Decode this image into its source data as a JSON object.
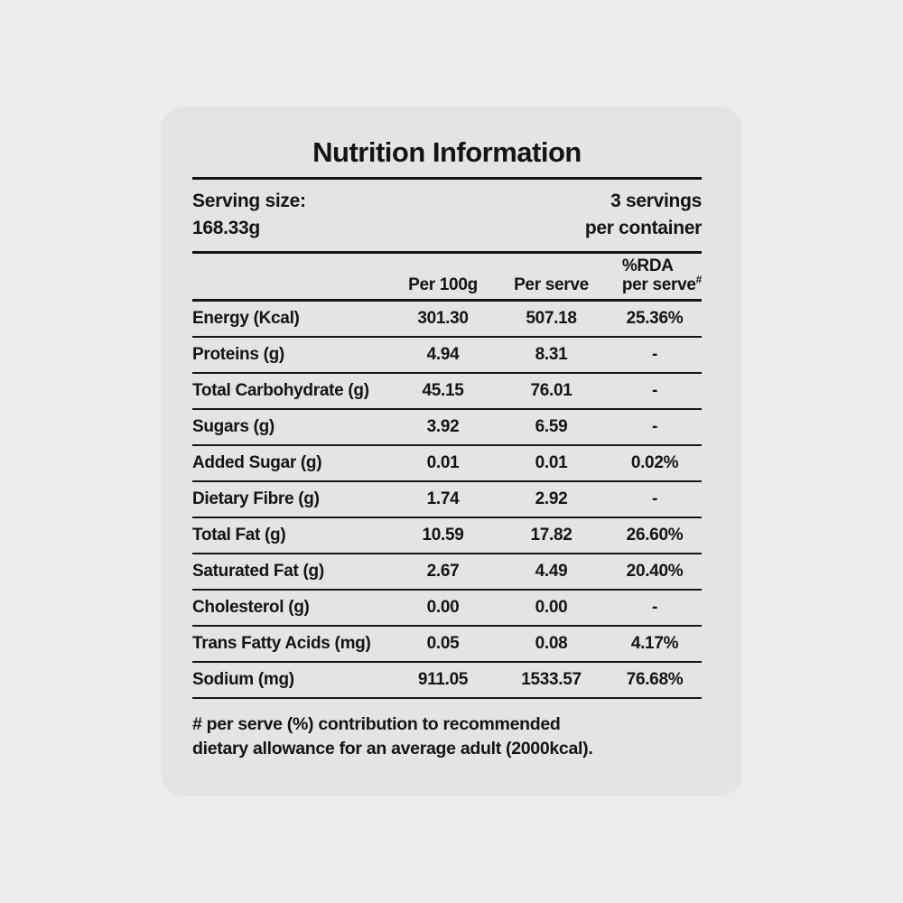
{
  "page": {
    "background_color": "#ebeced",
    "card_color": "#e2e4e6",
    "text_color": "#141414"
  },
  "title": "Nutrition Information",
  "serving": {
    "label": "Serving size:",
    "size": "168.33g",
    "servings_line1": "3 servings",
    "servings_line2": "per container"
  },
  "table": {
    "headers": {
      "per100g": "Per 100g",
      "per_serve": "Per serve",
      "rda_line1": "%RDA",
      "rda_line2": "per serve",
      "rda_sup": "#"
    },
    "rows": [
      {
        "label": "Energy (Kcal)",
        "per100g": "301.30",
        "per_serve": "507.18",
        "rda": "25.36%"
      },
      {
        "label": "Proteins (g)",
        "per100g": "4.94",
        "per_serve": "8.31",
        "rda": "-"
      },
      {
        "label": "Total Carbohydrate (g)",
        "per100g": "45.15",
        "per_serve": "76.01",
        "rda": "-"
      },
      {
        "label": "Sugars (g)",
        "per100g": "3.92",
        "per_serve": "6.59",
        "rda": "-"
      },
      {
        "label": "Added Sugar (g)",
        "per100g": "0.01",
        "per_serve": "0.01",
        "rda": "0.02%"
      },
      {
        "label": "Dietary Fibre (g)",
        "per100g": "1.74",
        "per_serve": "2.92",
        "rda": "-"
      },
      {
        "label": "Total Fat (g)",
        "per100g": "10.59",
        "per_serve": "17.82",
        "rda": "26.60%"
      },
      {
        "label": "Saturated Fat (g)",
        "per100g": "2.67",
        "per_serve": "4.49",
        "rda": "20.40%"
      },
      {
        "label": "Cholesterol (g)",
        "per100g": "0.00",
        "per_serve": "0.00",
        "rda": "-"
      },
      {
        "label": "Trans Fatty Acids (mg)",
        "per100g": "0.05",
        "per_serve": "0.08",
        "rda": "4.17%"
      },
      {
        "label": "Sodium (mg)",
        "per100g": "911.05",
        "per_serve": "1533.57",
        "rda": "76.68%"
      }
    ]
  },
  "footnote": {
    "line1": "# per serve (%) contribution to recommended",
    "line2": "dietary allowance for an average adult (2000kcal)."
  }
}
